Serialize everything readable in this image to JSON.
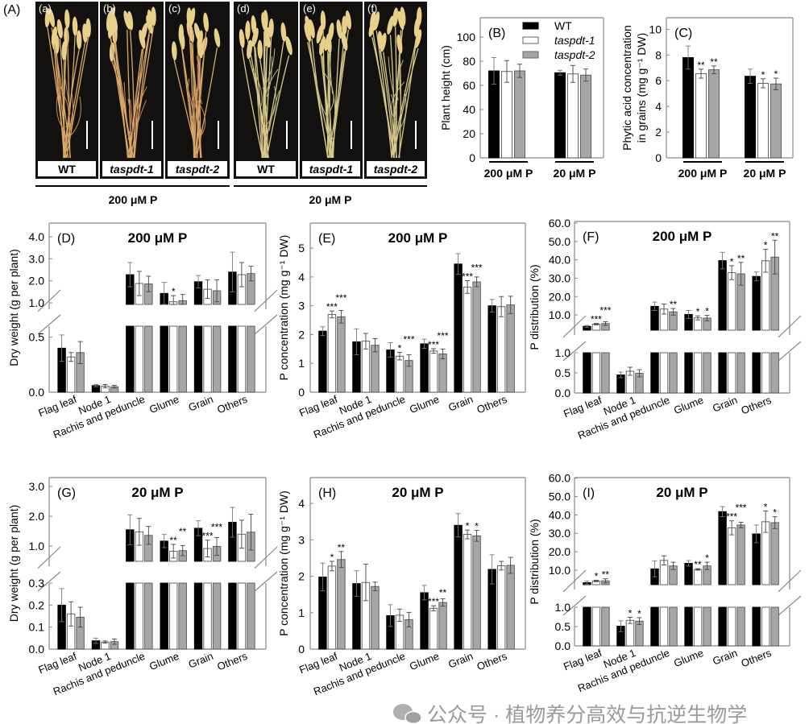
{
  "panel_a": {
    "label": "(A)",
    "subpanels": [
      {
        "label": "(a)",
        "genotype": "WT"
      },
      {
        "label": "(b)",
        "genotype": "taspdt-1"
      },
      {
        "label": "(c)",
        "genotype": "taspdt-2"
      },
      {
        "label": "(d)",
        "genotype": "WT"
      },
      {
        "label": "(e)",
        "genotype": "taspdt-1"
      },
      {
        "label": "(f)",
        "genotype": "taspdt-2"
      }
    ],
    "groups": [
      "200 μM P",
      "20 μM P"
    ]
  },
  "legend": [
    {
      "name": "WT",
      "color": "#000000"
    },
    {
      "name": "taspdt-1",
      "color": "#ffffff"
    },
    {
      "name": "taspdt-2",
      "color": "#a6a6a6"
    }
  ],
  "watermark": "公众号 · 植物养分高效与抗逆生物学",
  "chart_data": [
    {
      "panel": "(B)",
      "type": "bar",
      "title": "",
      "ylabel": "Plant height (cm)",
      "categories": [
        "200 μM P",
        "20 μM P"
      ],
      "ylim": [
        0,
        116
      ],
      "yticks": [
        "0",
        "20",
        "40",
        "60",
        "80",
        "100"
      ],
      "series": [
        {
          "name": "WT",
          "values": [
            72,
            70.5
          ],
          "errors": [
            11,
            2
          ],
          "significance": [
            "",
            ""
          ]
        },
        {
          "name": "taspdt-1",
          "values": [
            71.5,
            69.5
          ],
          "errors": [
            9,
            7
          ],
          "significance": [
            "",
            ""
          ]
        },
        {
          "name": "taspdt-2",
          "values": [
            72,
            68.5
          ],
          "errors": [
            5.5,
            5
          ],
          "significance": [
            "",
            ""
          ]
        }
      ]
    },
    {
      "panel": "(C)",
      "type": "bar",
      "title": "",
      "ylabel": "Phytic acid concentration in grains (mg g⁻¹ DW)",
      "ylabel_lines": [
        "Phytic acid concentration",
        "in grains (mg g⁻¹ DW)"
      ],
      "categories": [
        "200 μM P",
        "20 μM P"
      ],
      "ylim": [
        0,
        10.9
      ],
      "yticks": [
        "0",
        "2",
        "4",
        "6",
        "8",
        "10"
      ],
      "series": [
        {
          "name": "WT",
          "values": [
            7.8,
            6.35
          ],
          "errors": [
            0.9,
            0.55
          ],
          "significance": [
            "",
            ""
          ]
        },
        {
          "name": "taspdt-1",
          "values": [
            6.55,
            5.8
          ],
          "errors": [
            0.35,
            0.35
          ],
          "significance": [
            "**",
            "*"
          ]
        },
        {
          "name": "taspdt-2",
          "values": [
            6.85,
            5.75
          ],
          "errors": [
            0.3,
            0.45
          ],
          "significance": [
            "**",
            "*"
          ]
        }
      ]
    },
    {
      "panel": "(D)",
      "type": "bar",
      "title": "200 μM P",
      "ylabel": "Dry weight (g per plant)",
      "categories": [
        "Flag leaf",
        "Node 1",
        "Rachis and peduncle",
        "Glume",
        "Grain",
        "Others"
      ],
      "axis_break": {
        "lower": [
          0,
          0.6
        ],
        "upper": [
          0.93,
          4.62
        ]
      },
      "yticks_lower": [
        "0.0",
        "0.5"
      ],
      "yticks_upper": [
        "1.0",
        "2.0",
        "3.0",
        "4.0"
      ],
      "series": [
        {
          "name": "WT",
          "values": [
            0.4,
            0.06,
            2.28,
            1.43,
            1.96,
            2.4
          ],
          "errors": [
            0.12,
            0.01,
            0.55,
            0.5,
            0.28,
            0.9
          ],
          "significance": [
            "",
            "",
            "",
            "",
            "",
            ""
          ]
        },
        {
          "name": "taspdt-1",
          "values": [
            0.32,
            0.055,
            1.88,
            1.05,
            1.62,
            2.28
          ],
          "errors": [
            0.04,
            0.015,
            0.55,
            0.28,
            0.42,
            0.55
          ],
          "significance": [
            "",
            "",
            "",
            "*",
            "",
            ""
          ]
        },
        {
          "name": "taspdt-2",
          "values": [
            0.36,
            0.05,
            1.86,
            1.1,
            1.55,
            2.33
          ],
          "errors": [
            0.1,
            0.012,
            0.35,
            0.28,
            0.5,
            0.33
          ],
          "significance": [
            "",
            "",
            "",
            "",
            "",
            ""
          ]
        }
      ]
    },
    {
      "panel": "(E)",
      "type": "bar",
      "title": "200 μM P",
      "ylabel": "P concentration (mg g⁻¹ DW)",
      "categories": [
        "Flag leaf",
        "Node 1",
        "Rachis and peduncle",
        "Glume",
        "Grain",
        "Others"
      ],
      "ylim": [
        0,
        5.87
      ],
      "yticks": [
        "0",
        "1",
        "2",
        "3",
        "4",
        "5"
      ],
      "series": [
        {
          "name": "WT",
          "values": [
            2.12,
            1.75,
            1.47,
            1.68,
            4.45,
            3.0
          ],
          "errors": [
            0.15,
            0.45,
            0.25,
            0.16,
            0.36,
            0.22
          ],
          "significance": [
            "",
            "",
            "",
            "",
            "",
            ""
          ]
        },
        {
          "name": "taspdt-1",
          "values": [
            2.7,
            1.77,
            1.25,
            1.43,
            3.65,
            2.97
          ],
          "errors": [
            0.12,
            0.27,
            0.13,
            0.08,
            0.22,
            0.35
          ],
          "significance": [
            "***",
            "",
            "*",
            "***",
            "***",
            ""
          ]
        },
        {
          "name": "taspdt-2",
          "values": [
            2.62,
            1.63,
            1.1,
            1.33,
            3.83,
            3.03
          ],
          "errors": [
            0.22,
            0.23,
            0.2,
            0.17,
            0.17,
            0.3
          ],
          "significance": [
            "***",
            "",
            "***",
            "***",
            "***",
            ""
          ]
        }
      ]
    },
    {
      "panel": "(F)",
      "type": "bar",
      "title": "200 μM P",
      "ylabel": "P distribution (%)",
      "categories": [
        "Flag leaf",
        "Node 1",
        "Rachis and peduncle",
        "Glume",
        "Grain",
        "Others"
      ],
      "axis_break": {
        "lower": [
          0,
          1.0
        ],
        "upper": [
          1.7,
          60.9
        ]
      },
      "yticks_lower": [
        "0.0",
        "0.5",
        "1.0"
      ],
      "yticks_upper": [
        "10.0",
        "20.0",
        "30.0",
        "40.0",
        "50.0",
        "60.0"
      ],
      "series": [
        {
          "name": "WT",
          "values": [
            3.8,
            0.45,
            14.7,
            10.3,
            39.6,
            31.0
          ],
          "errors": [
            0.5,
            0.07,
            2.3,
            2.2,
            4.5,
            2.4
          ],
          "significance": [
            "",
            "",
            "",
            "",
            "",
            ""
          ]
        },
        {
          "name": "taspdt-1",
          "values": [
            5.0,
            0.54,
            13.2,
            8.4,
            33.0,
            39.5
          ],
          "errors": [
            0.4,
            0.1,
            2.7,
            1.1,
            3.8,
            6.2
          ],
          "significance": [
            "***",
            "",
            "",
            "*",
            "*",
            "*"
          ]
        },
        {
          "name": "taspdt-2",
          "values": [
            5.3,
            0.49,
            11.7,
            8.3,
            32.4,
            41.5
          ],
          "errors": [
            1.0,
            0.09,
            1.8,
            1.5,
            6.2,
            9.2
          ],
          "significance": [
            "***",
            "",
            "**",
            "*",
            "**",
            "**"
          ]
        }
      ]
    },
    {
      "panel": "(G)",
      "type": "bar",
      "title": "20 μM P",
      "ylabel": "Dry weight (g per plant)",
      "categories": [
        "Flag leaf",
        "Node 1",
        "Rachis and peduncle",
        "Glume",
        "Grain",
        "Others"
      ],
      "axis_break": {
        "lower": [
          0,
          0.3
        ],
        "upper": [
          0.49,
          3.3
        ]
      },
      "yticks_lower": [
        "0.0",
        "0.1",
        "0.2",
        "0.3"
      ],
      "yticks_upper": [
        "1.0",
        "2.0",
        "3.0"
      ],
      "series": [
        {
          "name": "WT",
          "values": [
            0.2,
            0.038,
            1.55,
            1.17,
            1.6,
            1.8
          ],
          "errors": [
            0.075,
            0.012,
            0.5,
            0.22,
            0.25,
            0.5
          ],
          "significance": [
            "",
            "",
            "",
            "",
            "",
            ""
          ]
        },
        {
          "name": "taspdt-1",
          "values": [
            0.16,
            0.032,
            1.48,
            0.83,
            0.92,
            1.4
          ],
          "errors": [
            0.055,
            0.005,
            0.45,
            0.23,
            0.28,
            0.47
          ],
          "significance": [
            "",
            "",
            "",
            "**",
            "***",
            ""
          ]
        },
        {
          "name": "taspdt-2",
          "values": [
            0.145,
            0.034,
            1.36,
            0.85,
            0.99,
            1.47
          ],
          "errors": [
            0.045,
            0.012,
            0.3,
            0.17,
            0.3,
            0.6
          ],
          "significance": [
            "",
            "",
            "",
            "**",
            "***",
            ""
          ]
        }
      ]
    },
    {
      "panel": "(H)",
      "type": "bar",
      "title": "20 μM P",
      "ylabel": "P concentration (mg g⁻¹ DW)",
      "categories": [
        "Flag leaf",
        "Node 1",
        "Rachis and peduncle",
        "Glume",
        "Grain",
        "Others"
      ],
      "ylim": [
        0,
        4.71
      ],
      "yticks": [
        "0",
        "1",
        "2",
        "3",
        "4"
      ],
      "series": [
        {
          "name": "WT",
          "values": [
            1.98,
            1.8,
            0.92,
            1.55,
            3.4,
            2.19
          ],
          "errors": [
            0.38,
            0.35,
            0.3,
            0.2,
            0.32,
            0.4
          ],
          "significance": [
            "",
            "",
            "",
            "",
            "",
            ""
          ]
        },
        {
          "name": "taspdt-1",
          "values": [
            2.28,
            1.83,
            0.93,
            1.12,
            3.15,
            2.29
          ],
          "errors": [
            0.13,
            0.5,
            0.17,
            0.07,
            0.12,
            0.12
          ],
          "significance": [
            "*",
            "",
            "",
            "***",
            "*",
            ""
          ]
        },
        {
          "name": "taspdt-2",
          "values": [
            2.46,
            1.72,
            0.81,
            1.28,
            3.11,
            2.3
          ],
          "errors": [
            0.22,
            0.12,
            0.2,
            0.1,
            0.15,
            0.22
          ],
          "significance": [
            "**",
            "",
            "",
            "**",
            "*",
            ""
          ]
        }
      ]
    },
    {
      "panel": "(I)",
      "type": "bar",
      "title": "20 μM P",
      "ylabel": "P distribution (%)",
      "categories": [
        "Flag leaf",
        "Node 1",
        "Rachis and peduncle",
        "Glume",
        "Grain",
        "Others"
      ],
      "axis_break": {
        "lower": [
          0,
          1.0
        ],
        "upper": [
          2.1,
          60.3
        ]
      },
      "yticks_lower": [
        "0.0",
        "0.5",
        "1.0"
      ],
      "yticks_upper": [
        "10.0",
        "20.0",
        "30.0",
        "40.0",
        "50.0",
        "60.0"
      ],
      "series": [
        {
          "name": "WT",
          "values": [
            3.2,
            0.51,
            10.7,
            13.7,
            41.8,
            29.7
          ],
          "errors": [
            0.8,
            0.14,
            4.3,
            1.5,
            2.7,
            4.8
          ],
          "significance": [
            "",
            "",
            "",
            "",
            "",
            ""
          ]
        },
        {
          "name": "taspdt-1",
          "values": [
            4.1,
            0.66,
            15.3,
            10.4,
            33.0,
            36.3
          ],
          "errors": [
            0.4,
            0.08,
            2.5,
            0.4,
            3.8,
            5.8
          ],
          "significance": [
            "*",
            "*",
            "",
            "**",
            "***",
            "*"
          ]
        },
        {
          "name": "taspdt-2",
          "values": [
            4.2,
            0.64,
            12.3,
            12.3,
            34.5,
            35.8
          ],
          "errors": [
            1.1,
            0.09,
            2.0,
            2.0,
            1.5,
            3.2
          ],
          "significance": [
            "**",
            "*",
            "",
            "*",
            "***",
            "*"
          ]
        }
      ]
    }
  ]
}
